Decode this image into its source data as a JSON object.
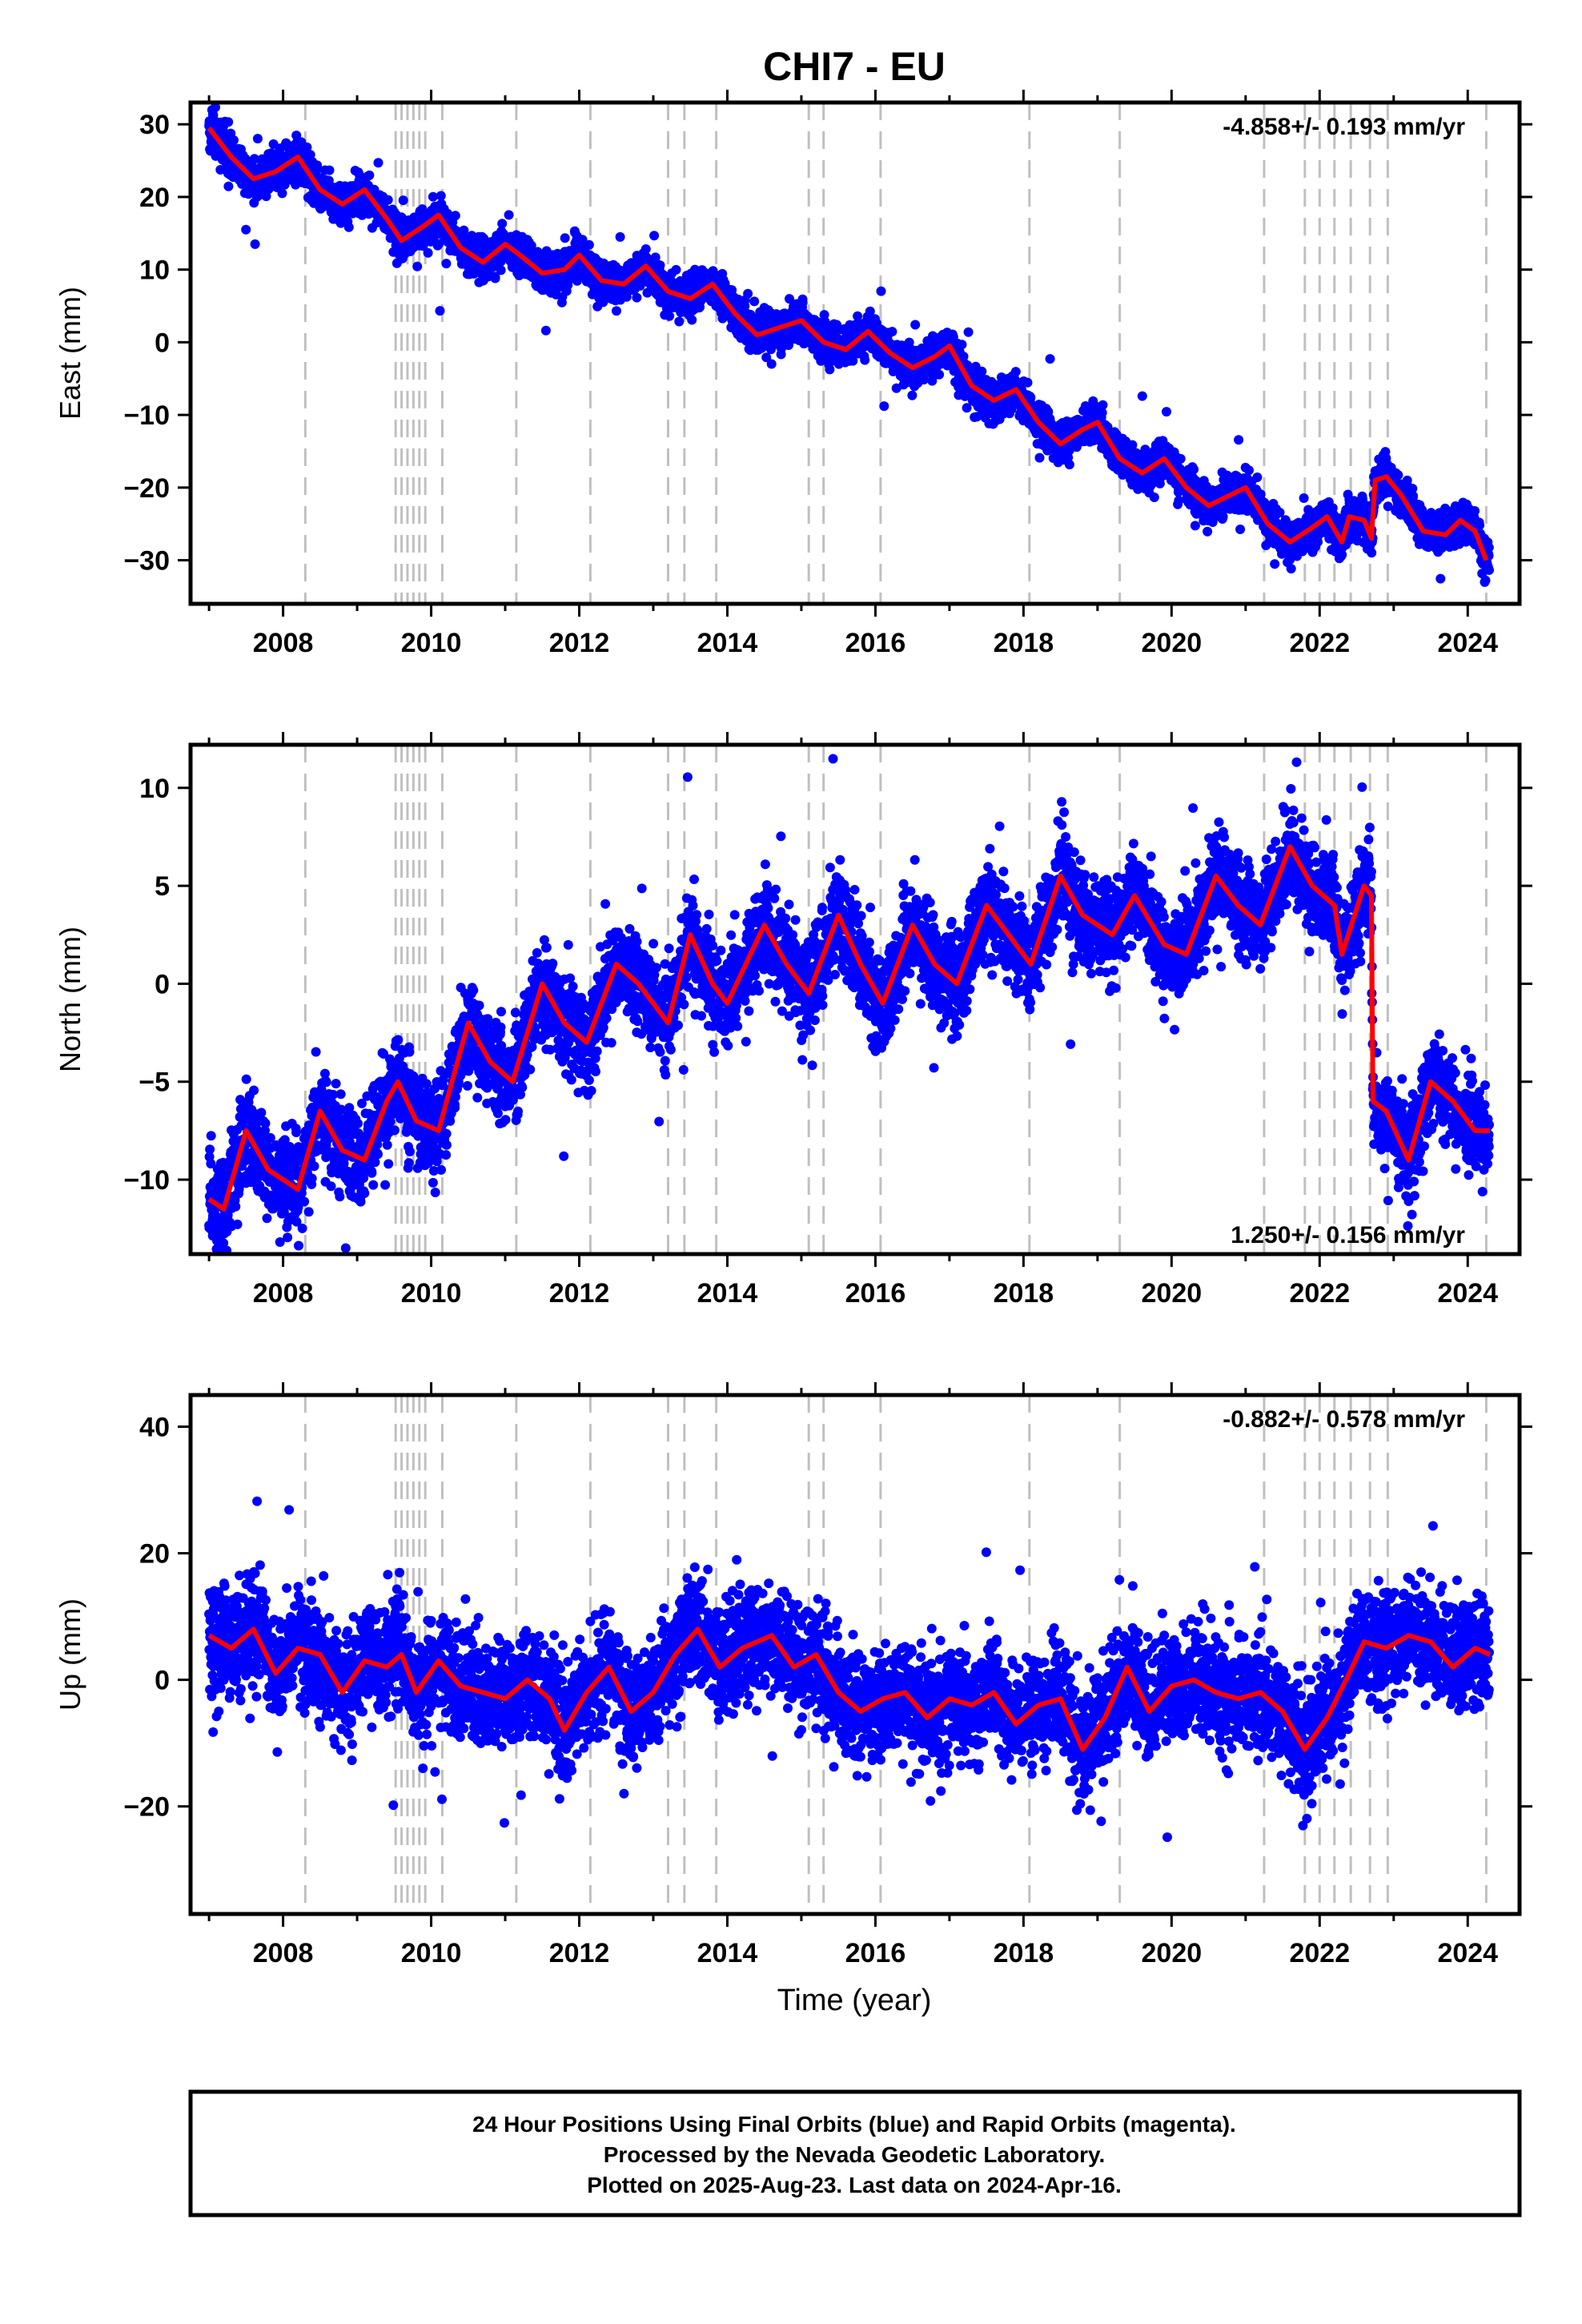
{
  "title": "CHI7 - EU",
  "xlabel": "Time (year)",
  "caption": [
    "24 Hour Positions Using Final Orbits (blue) and Rapid Orbits (magenta).",
    "Processed by the Nevada Geodetic Laboratory.",
    "Plotted on 2025-Aug-23. Last data on 2024-Apr-16."
  ],
  "colors": {
    "final_orbits": "#0000ff",
    "model": "#ff0000",
    "event_lines": "#c0c0c0"
  },
  "chart_data": [
    {
      "type": "scatter",
      "name": "east",
      "ylabel": "East (mm)",
      "rate": "-4.858+/- 0.193 mm/yr",
      "xlim": [
        2006.75,
        2024.7
      ],
      "ylim": [
        -36,
        33
      ],
      "xticks": [
        "2008",
        "2010",
        "2012",
        "2014",
        "2016",
        "2018",
        "2020",
        "2022",
        "2024"
      ],
      "yticks": [
        "30",
        "20",
        "10",
        "0",
        "−10",
        "−20",
        "−30"
      ],
      "model_points": [
        [
          2007.0,
          29.5
        ],
        [
          2007.3,
          25.5
        ],
        [
          2007.6,
          22.5
        ],
        [
          2007.9,
          23.5
        ],
        [
          2008.2,
          25.5
        ],
        [
          2008.5,
          21
        ],
        [
          2008.8,
          19
        ],
        [
          2009.1,
          21
        ],
        [
          2009.4,
          17
        ],
        [
          2009.6,
          14
        ],
        [
          2009.9,
          16
        ],
        [
          2010.1,
          17.5
        ],
        [
          2010.4,
          13
        ],
        [
          2010.7,
          11
        ],
        [
          2011.0,
          13.5
        ],
        [
          2011.2,
          12
        ],
        [
          2011.5,
          9.5
        ],
        [
          2011.8,
          10
        ],
        [
          2012.0,
          12
        ],
        [
          2012.3,
          8.5
        ],
        [
          2012.6,
          8
        ],
        [
          2012.9,
          10.5
        ],
        [
          2013.2,
          7
        ],
        [
          2013.5,
          6
        ],
        [
          2013.8,
          8
        ],
        [
          2014.1,
          4
        ],
        [
          2014.4,
          1
        ],
        [
          2014.7,
          2
        ],
        [
          2015.0,
          3
        ],
        [
          2015.3,
          0
        ],
        [
          2015.6,
          -1
        ],
        [
          2015.9,
          1.5
        ],
        [
          2016.2,
          -1.5
        ],
        [
          2016.5,
          -3.5
        ],
        [
          2016.8,
          -2
        ],
        [
          2017.0,
          -0.5
        ],
        [
          2017.3,
          -6
        ],
        [
          2017.6,
          -8
        ],
        [
          2017.9,
          -6.5
        ],
        [
          2018.2,
          -11
        ],
        [
          2018.5,
          -14
        ],
        [
          2018.8,
          -12
        ],
        [
          2019.0,
          -11
        ],
        [
          2019.3,
          -16
        ],
        [
          2019.6,
          -18
        ],
        [
          2019.9,
          -16
        ],
        [
          2020.2,
          -20
        ],
        [
          2020.5,
          -22.5
        ],
        [
          2020.8,
          -21
        ],
        [
          2021.0,
          -20
        ],
        [
          2021.3,
          -25
        ],
        [
          2021.6,
          -27.5
        ],
        [
          2021.9,
          -25.5
        ],
        [
          2022.1,
          -24
        ],
        [
          2022.3,
          -27.5
        ],
        [
          2022.4,
          -24
        ],
        [
          2022.6,
          -24.5
        ],
        [
          2022.7,
          -27
        ],
        [
          2022.75,
          -19
        ],
        [
          2022.9,
          -18.5
        ],
        [
          2023.1,
          -21
        ],
        [
          2023.4,
          -26
        ],
        [
          2023.7,
          -26.5
        ],
        [
          2023.9,
          -24.5
        ],
        [
          2024.1,
          -26
        ],
        [
          2024.25,
          -30
        ]
      ]
    },
    {
      "type": "scatter",
      "name": "north",
      "ylabel": "North (mm)",
      "rate": "1.250+/- 0.156 mm/yr",
      "xlim": [
        2006.75,
        2024.7
      ],
      "ylim": [
        -13.8,
        12.2
      ],
      "xticks": [
        "2008",
        "2010",
        "2012",
        "2014",
        "2016",
        "2018",
        "2020",
        "2022",
        "2024"
      ],
      "yticks": [
        "10",
        "5",
        "0",
        "−5",
        "−10"
      ],
      "model_points": [
        [
          2007.0,
          -11
        ],
        [
          2007.2,
          -11.5
        ],
        [
          2007.5,
          -7.5
        ],
        [
          2007.8,
          -9.5
        ],
        [
          2008.2,
          -10.5
        ],
        [
          2008.5,
          -6.5
        ],
        [
          2008.8,
          -8.5
        ],
        [
          2009.1,
          -9
        ],
        [
          2009.4,
          -6
        ],
        [
          2009.55,
          -5
        ],
        [
          2009.8,
          -7
        ],
        [
          2010.1,
          -7.5
        ],
        [
          2010.5,
          -2
        ],
        [
          2010.8,
          -4
        ],
        [
          2011.1,
          -5
        ],
        [
          2011.5,
          0
        ],
        [
          2011.8,
          -2
        ],
        [
          2012.1,
          -3
        ],
        [
          2012.5,
          1
        ],
        [
          2012.8,
          0
        ],
        [
          2013.2,
          -2
        ],
        [
          2013.5,
          2.5
        ],
        [
          2013.8,
          0
        ],
        [
          2014.0,
          -1
        ],
        [
          2014.5,
          3
        ],
        [
          2014.8,
          1
        ],
        [
          2015.1,
          -0.5
        ],
        [
          2015.5,
          3.5
        ],
        [
          2015.8,
          1
        ],
        [
          2016.1,
          -1
        ],
        [
          2016.5,
          3
        ],
        [
          2016.8,
          1
        ],
        [
          2017.1,
          0
        ],
        [
          2017.5,
          4
        ],
        [
          2017.8,
          2.5
        ],
        [
          2018.1,
          1
        ],
        [
          2018.5,
          5.5
        ],
        [
          2018.8,
          3.5
        ],
        [
          2019.2,
          2.5
        ],
        [
          2019.5,
          4.5
        ],
        [
          2019.9,
          2
        ],
        [
          2020.2,
          1.5
        ],
        [
          2020.6,
          5.5
        ],
        [
          2020.9,
          4
        ],
        [
          2021.2,
          3
        ],
        [
          2021.6,
          7
        ],
        [
          2021.9,
          5
        ],
        [
          2022.2,
          4
        ],
        [
          2022.3,
          1.5
        ],
        [
          2022.6,
          5
        ],
        [
          2022.7,
          4.5
        ],
        [
          2022.72,
          -6
        ],
        [
          2022.9,
          -6.5
        ],
        [
          2023.2,
          -9
        ],
        [
          2023.5,
          -5
        ],
        [
          2023.8,
          -6
        ],
        [
          2024.1,
          -7.5
        ],
        [
          2024.3,
          -7.5
        ]
      ]
    },
    {
      "type": "scatter",
      "name": "up",
      "ylabel": "Up (mm)",
      "rate": "-0.882+/- 0.578 mm/yr",
      "xlim": [
        2006.75,
        2024.7
      ],
      "ylim": [
        -37,
        45
      ],
      "xticks": [
        "2008",
        "2010",
        "2012",
        "2014",
        "2016",
        "2018",
        "2020",
        "2022",
        "2024"
      ],
      "yticks": [
        "40",
        "20",
        "0",
        "−20"
      ],
      "model_points": [
        [
          2007.0,
          7
        ],
        [
          2007.3,
          5
        ],
        [
          2007.6,
          8
        ],
        [
          2007.9,
          1
        ],
        [
          2008.2,
          5
        ],
        [
          2008.5,
          4
        ],
        [
          2008.8,
          -2
        ],
        [
          2009.1,
          3
        ],
        [
          2009.4,
          2
        ],
        [
          2009.6,
          4
        ],
        [
          2009.8,
          -2
        ],
        [
          2010.1,
          3
        ],
        [
          2010.4,
          -1
        ],
        [
          2010.7,
          -2
        ],
        [
          2011.0,
          -3
        ],
        [
          2011.3,
          0
        ],
        [
          2011.6,
          -3
        ],
        [
          2011.8,
          -8
        ],
        [
          2012.1,
          -2
        ],
        [
          2012.4,
          2
        ],
        [
          2012.7,
          -5
        ],
        [
          2013.0,
          -2
        ],
        [
          2013.3,
          4
        ],
        [
          2013.6,
          8
        ],
        [
          2013.9,
          2
        ],
        [
          2014.2,
          5
        ],
        [
          2014.6,
          7
        ],
        [
          2014.9,
          2
        ],
        [
          2015.2,
          4
        ],
        [
          2015.5,
          -2
        ],
        [
          2015.8,
          -5
        ],
        [
          2016.1,
          -3
        ],
        [
          2016.4,
          -2
        ],
        [
          2016.7,
          -6
        ],
        [
          2017.0,
          -3
        ],
        [
          2017.3,
          -4
        ],
        [
          2017.6,
          -2
        ],
        [
          2017.9,
          -7
        ],
        [
          2018.2,
          -4
        ],
        [
          2018.5,
          -3
        ],
        [
          2018.8,
          -11
        ],
        [
          2019.1,
          -6
        ],
        [
          2019.4,
          2
        ],
        [
          2019.7,
          -5
        ],
        [
          2020.0,
          -1
        ],
        [
          2020.3,
          0
        ],
        [
          2020.6,
          -2
        ],
        [
          2020.9,
          -3
        ],
        [
          2021.2,
          -2
        ],
        [
          2021.5,
          -5
        ],
        [
          2021.8,
          -11
        ],
        [
          2022.1,
          -6
        ],
        [
          2022.4,
          1
        ],
        [
          2022.6,
          6
        ],
        [
          2022.9,
          5
        ],
        [
          2023.2,
          7
        ],
        [
          2023.5,
          6
        ],
        [
          2023.8,
          2
        ],
        [
          2024.1,
          5
        ],
        [
          2024.3,
          4
        ]
      ]
    }
  ]
}
